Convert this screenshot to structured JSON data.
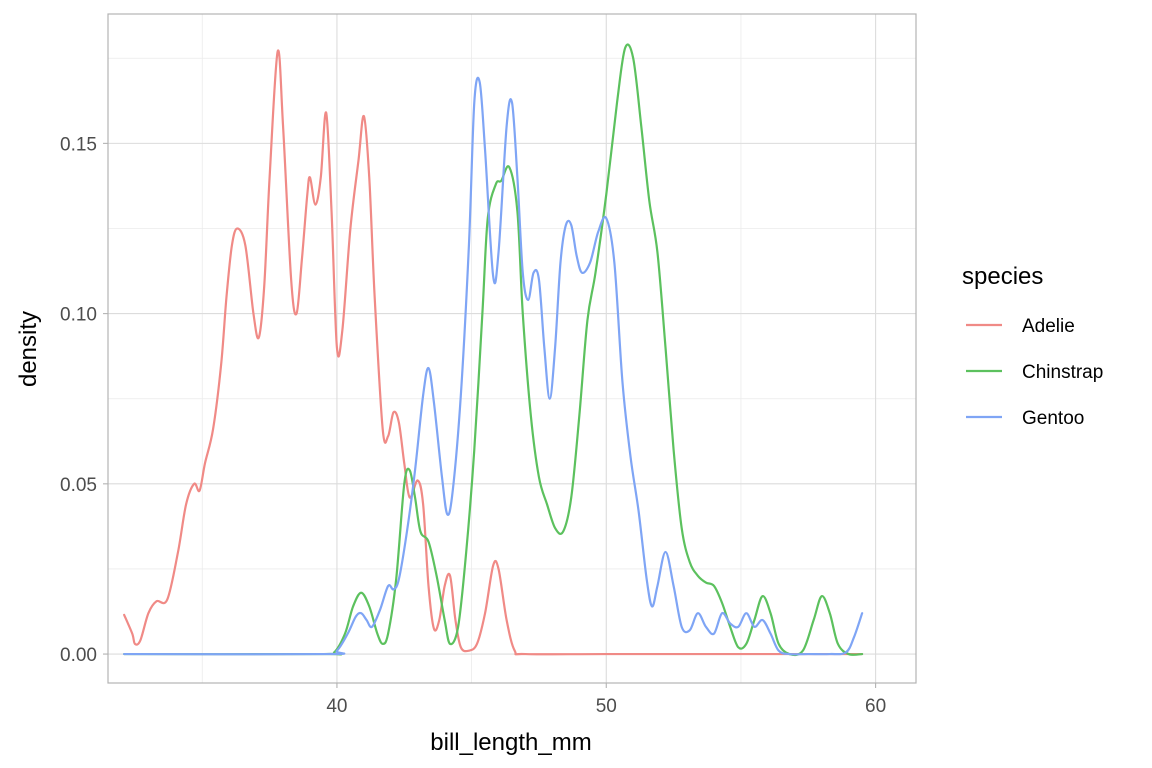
{
  "chart_data": {
    "type": "line",
    "title": "",
    "xlabel": "bill_length_mm",
    "ylabel": "density",
    "xlim": [
      31.5,
      61.5
    ],
    "ylim": [
      -0.0085,
      0.188
    ],
    "x_ticks": [
      40,
      50,
      60
    ],
    "y_ticks": [
      0.0,
      0.05,
      0.1,
      0.15
    ],
    "x_tick_labels": [
      "40",
      "50",
      "60"
    ],
    "y_tick_labels": [
      "0.00",
      "0.05",
      "0.10",
      "0.15"
    ],
    "grid": true,
    "legend": {
      "title": "species",
      "position": "right"
    },
    "series": [
      {
        "name": "Adelie",
        "color": "#F08A86",
        "points": [
          [
            32.1,
            0.0115
          ],
          [
            32.4,
            0.006
          ],
          [
            32.5,
            0.003
          ],
          [
            32.7,
            0.004
          ],
          [
            33.0,
            0.012
          ],
          [
            33.3,
            0.0155
          ],
          [
            33.7,
            0.016
          ],
          [
            34.1,
            0.03
          ],
          [
            34.4,
            0.044
          ],
          [
            34.7,
            0.05
          ],
          [
            34.9,
            0.048
          ],
          [
            35.1,
            0.056
          ],
          [
            35.4,
            0.066
          ],
          [
            35.7,
            0.085
          ],
          [
            35.9,
            0.105
          ],
          [
            36.1,
            0.12
          ],
          [
            36.3,
            0.125
          ],
          [
            36.6,
            0.12
          ],
          [
            36.9,
            0.1
          ],
          [
            37.1,
            0.093
          ],
          [
            37.3,
            0.108
          ],
          [
            37.5,
            0.14
          ],
          [
            37.8,
            0.177
          ],
          [
            38.0,
            0.155
          ],
          [
            38.3,
            0.11
          ],
          [
            38.5,
            0.1
          ],
          [
            38.7,
            0.116
          ],
          [
            38.9,
            0.135
          ],
          [
            39.0,
            0.14
          ],
          [
            39.2,
            0.132
          ],
          [
            39.4,
            0.14
          ],
          [
            39.6,
            0.159
          ],
          [
            39.8,
            0.13
          ],
          [
            40.0,
            0.09
          ],
          [
            40.2,
            0.095
          ],
          [
            40.5,
            0.125
          ],
          [
            40.8,
            0.145
          ],
          [
            41.0,
            0.158
          ],
          [
            41.2,
            0.14
          ],
          [
            41.4,
            0.105
          ],
          [
            41.7,
            0.066
          ],
          [
            41.9,
            0.064
          ],
          [
            42.1,
            0.071
          ],
          [
            42.3,
            0.068
          ],
          [
            42.5,
            0.056
          ],
          [
            42.7,
            0.046
          ],
          [
            43.0,
            0.051
          ],
          [
            43.2,
            0.044
          ],
          [
            43.4,
            0.02
          ],
          [
            43.6,
            0.0075
          ],
          [
            43.8,
            0.01
          ],
          [
            44.0,
            0.02
          ],
          [
            44.2,
            0.023
          ],
          [
            44.4,
            0.01
          ],
          [
            44.6,
            0.002
          ],
          [
            44.9,
            0.001
          ],
          [
            45.2,
            0.003
          ],
          [
            45.5,
            0.012
          ],
          [
            45.8,
            0.026
          ],
          [
            46.0,
            0.025
          ],
          [
            46.3,
            0.01
          ],
          [
            46.6,
            0.001
          ],
          [
            47.0,
            0.0
          ],
          [
            50.0,
            0.0
          ],
          [
            55.0,
            0.0
          ],
          [
            59.5,
            0.0
          ]
        ]
      },
      {
        "name": "Chinstrap",
        "color": "#5CC15E",
        "points": [
          [
            32.1,
            0.0
          ],
          [
            39.5,
            0.0
          ],
          [
            39.9,
            0.0005
          ],
          [
            40.3,
            0.006
          ],
          [
            40.6,
            0.014
          ],
          [
            40.9,
            0.018
          ],
          [
            41.2,
            0.014
          ],
          [
            41.5,
            0.006
          ],
          [
            41.7,
            0.003
          ],
          [
            41.9,
            0.006
          ],
          [
            42.2,
            0.022
          ],
          [
            42.5,
            0.05
          ],
          [
            42.7,
            0.054
          ],
          [
            42.9,
            0.046
          ],
          [
            43.1,
            0.036
          ],
          [
            43.4,
            0.033
          ],
          [
            43.7,
            0.023
          ],
          [
            44.0,
            0.01
          ],
          [
            44.2,
            0.003
          ],
          [
            44.5,
            0.008
          ],
          [
            44.8,
            0.03
          ],
          [
            45.1,
            0.06
          ],
          [
            45.4,
            0.1
          ],
          [
            45.6,
            0.128
          ],
          [
            45.9,
            0.138
          ],
          [
            46.1,
            0.139
          ],
          [
            46.4,
            0.143
          ],
          [
            46.7,
            0.13
          ],
          [
            46.9,
            0.1
          ],
          [
            47.2,
            0.07
          ],
          [
            47.5,
            0.052
          ],
          [
            47.8,
            0.044
          ],
          [
            48.1,
            0.037
          ],
          [
            48.4,
            0.036
          ],
          [
            48.7,
            0.046
          ],
          [
            49.0,
            0.07
          ],
          [
            49.3,
            0.098
          ],
          [
            49.6,
            0.112
          ],
          [
            50.0,
            0.135
          ],
          [
            50.4,
            0.162
          ],
          [
            50.7,
            0.178
          ],
          [
            51.0,
            0.175
          ],
          [
            51.3,
            0.155
          ],
          [
            51.6,
            0.133
          ],
          [
            51.9,
            0.118
          ],
          [
            52.2,
            0.09
          ],
          [
            52.5,
            0.06
          ],
          [
            52.8,
            0.037
          ],
          [
            53.1,
            0.027
          ],
          [
            53.4,
            0.023
          ],
          [
            53.7,
            0.021
          ],
          [
            54.0,
            0.02
          ],
          [
            54.3,
            0.015
          ],
          [
            54.6,
            0.008
          ],
          [
            54.9,
            0.002
          ],
          [
            55.2,
            0.003
          ],
          [
            55.5,
            0.01
          ],
          [
            55.8,
            0.017
          ],
          [
            56.1,
            0.012
          ],
          [
            56.4,
            0.003
          ],
          [
            56.8,
            0.0
          ],
          [
            57.3,
            0.001
          ],
          [
            57.7,
            0.01
          ],
          [
            58.0,
            0.017
          ],
          [
            58.3,
            0.012
          ],
          [
            58.6,
            0.003
          ],
          [
            59.0,
            0.0
          ],
          [
            59.5,
            0.0
          ]
        ]
      },
      {
        "name": "Gentoo",
        "color": "#7FA5F5",
        "points": [
          [
            32.1,
            0.0
          ],
          [
            39.6,
            0.0
          ],
          [
            40.0,
            0.001
          ],
          [
            40.4,
            0.006
          ],
          [
            40.7,
            0.011
          ],
          [
            40.9,
            0.012
          ],
          [
            41.1,
            0.01
          ],
          [
            41.3,
            0.008
          ],
          [
            41.6,
            0.013
          ],
          [
            41.9,
            0.02
          ],
          [
            42.1,
            0.019
          ],
          [
            42.3,
            0.022
          ],
          [
            42.6,
            0.036
          ],
          [
            42.9,
            0.054
          ],
          [
            43.2,
            0.076
          ],
          [
            43.4,
            0.084
          ],
          [
            43.6,
            0.074
          ],
          [
            43.9,
            0.052
          ],
          [
            44.1,
            0.041
          ],
          [
            44.3,
            0.048
          ],
          [
            44.6,
            0.076
          ],
          [
            44.9,
            0.12
          ],
          [
            45.1,
            0.162
          ],
          [
            45.3,
            0.168
          ],
          [
            45.5,
            0.148
          ],
          [
            45.8,
            0.111
          ],
          [
            46.0,
            0.118
          ],
          [
            46.3,
            0.155
          ],
          [
            46.5,
            0.162
          ],
          [
            46.7,
            0.14
          ],
          [
            46.9,
            0.112
          ],
          [
            47.1,
            0.104
          ],
          [
            47.3,
            0.112
          ],
          [
            47.5,
            0.11
          ],
          [
            47.7,
            0.09
          ],
          [
            47.9,
            0.075
          ],
          [
            48.1,
            0.09
          ],
          [
            48.3,
            0.115
          ],
          [
            48.5,
            0.126
          ],
          [
            48.7,
            0.126
          ],
          [
            48.9,
            0.117
          ],
          [
            49.1,
            0.112
          ],
          [
            49.4,
            0.115
          ],
          [
            49.7,
            0.124
          ],
          [
            50.0,
            0.128
          ],
          [
            50.3,
            0.115
          ],
          [
            50.6,
            0.08
          ],
          [
            50.9,
            0.058
          ],
          [
            51.2,
            0.042
          ],
          [
            51.5,
            0.022
          ],
          [
            51.7,
            0.014
          ],
          [
            51.9,
            0.02
          ],
          [
            52.2,
            0.03
          ],
          [
            52.5,
            0.02
          ],
          [
            52.8,
            0.008
          ],
          [
            53.1,
            0.007
          ],
          [
            53.4,
            0.012
          ],
          [
            53.7,
            0.008
          ],
          [
            54.0,
            0.006
          ],
          [
            54.3,
            0.012
          ],
          [
            54.6,
            0.009
          ],
          [
            54.9,
            0.008
          ],
          [
            55.2,
            0.012
          ],
          [
            55.5,
            0.008
          ],
          [
            55.8,
            0.01
          ],
          [
            56.1,
            0.006
          ],
          [
            56.4,
            0.001
          ],
          [
            56.8,
            0.0
          ],
          [
            57.5,
            0.0
          ],
          [
            58.3,
            0.0
          ],
          [
            58.9,
            0.0005
          ],
          [
            59.2,
            0.005
          ],
          [
            59.5,
            0.012
          ]
        ]
      }
    ]
  }
}
